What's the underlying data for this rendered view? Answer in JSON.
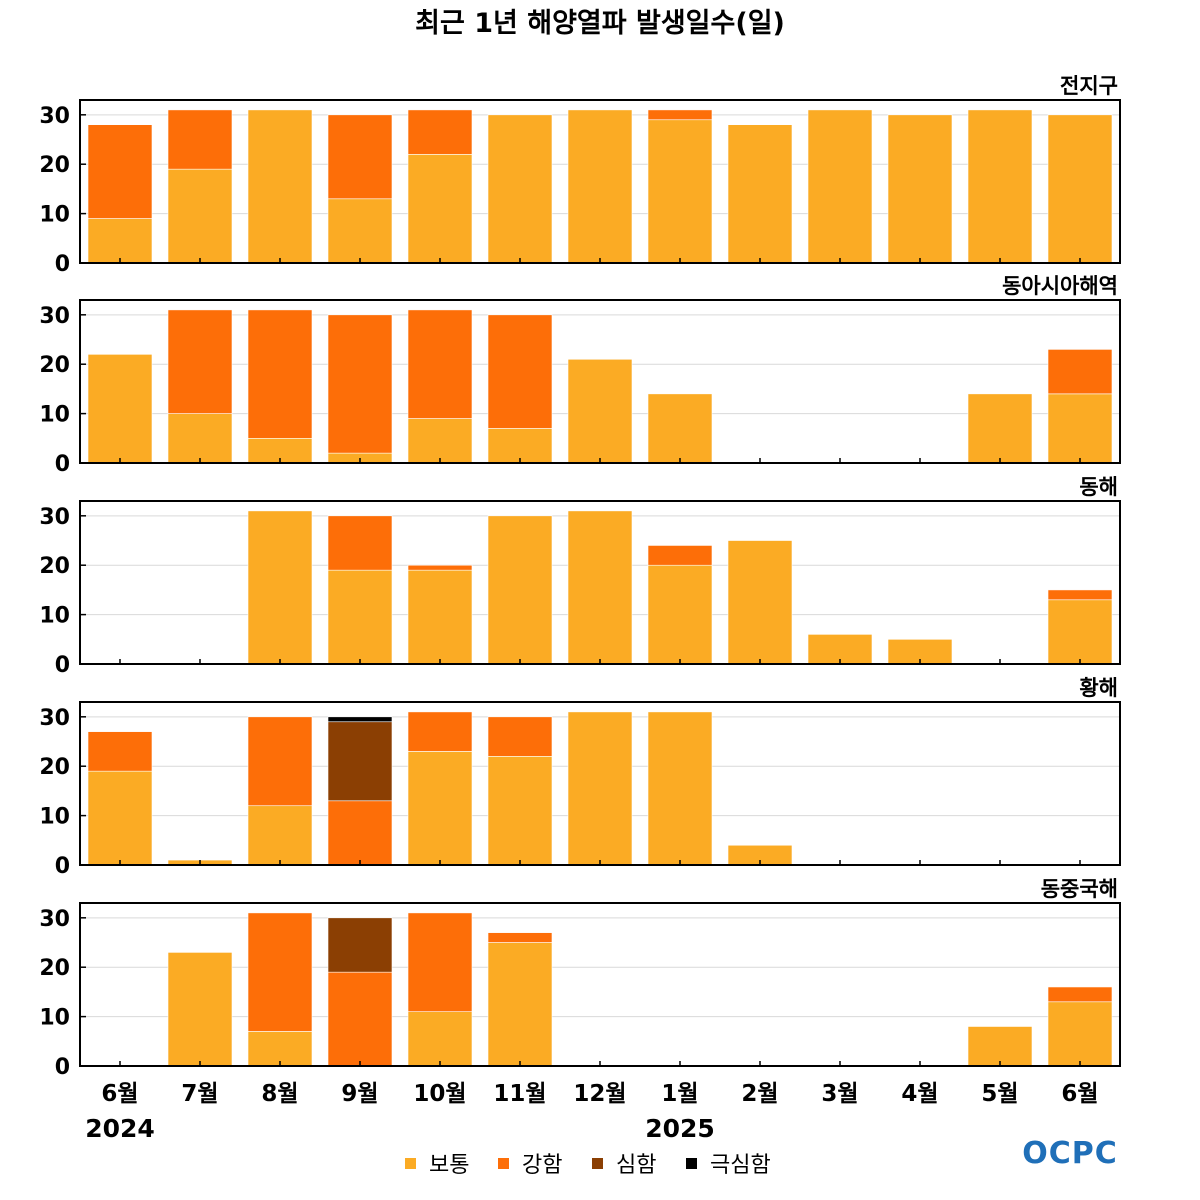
{
  "chart_data": {
    "type": "bar",
    "stacked": true,
    "title": "최근 1년 해양열파 발생일수(일)",
    "categories": [
      "6월",
      "7월",
      "8월",
      "9월",
      "10월",
      "11월",
      "12월",
      "1월",
      "2월",
      "3월",
      "4월",
      "5월",
      "6월"
    ],
    "year_labels": [
      {
        "index": 0,
        "text": "2024"
      },
      {
        "index": 7,
        "text": "2025"
      }
    ],
    "ylim": [
      0,
      33
    ],
    "yticks": [
      0,
      10,
      20,
      30
    ],
    "grid": true,
    "legend_position": "bottom-center",
    "series_legend": [
      {
        "name": "보통",
        "color": "#fbab24"
      },
      {
        "name": "강함",
        "color": "#fd6e08"
      },
      {
        "name": "심함",
        "color": "#8b3f03"
      },
      {
        "name": "극심함",
        "color": "#000000"
      }
    ],
    "panels": [
      {
        "region": "전지구",
        "series": [
          {
            "name": "보통",
            "values": [
              9,
              19,
              31,
              13,
              22,
              30,
              31,
              29,
              28,
              31,
              30,
              31,
              30
            ]
          },
          {
            "name": "강함",
            "values": [
              19,
              12,
              0,
              17,
              9,
              0,
              0,
              2,
              0,
              0,
              0,
              0,
              0
            ]
          },
          {
            "name": "심함",
            "values": [
              0,
              0,
              0,
              0,
              0,
              0,
              0,
              0,
              0,
              0,
              0,
              0,
              0
            ]
          },
          {
            "name": "극심함",
            "values": [
              0,
              0,
              0,
              0,
              0,
              0,
              0,
              0,
              0,
              0,
              0,
              0,
              0
            ]
          }
        ]
      },
      {
        "region": "동아시아해역",
        "series": [
          {
            "name": "보통",
            "values": [
              22,
              10,
              5,
              2,
              9,
              7,
              21,
              14,
              0,
              0,
              0,
              14,
              14
            ]
          },
          {
            "name": "강함",
            "values": [
              0,
              21,
              26,
              28,
              22,
              23,
              0,
              0,
              0,
              0,
              0,
              0,
              9
            ]
          },
          {
            "name": "심함",
            "values": [
              0,
              0,
              0,
              0,
              0,
              0,
              0,
              0,
              0,
              0,
              0,
              0,
              0
            ]
          },
          {
            "name": "극심함",
            "values": [
              0,
              0,
              0,
              0,
              0,
              0,
              0,
              0,
              0,
              0,
              0,
              0,
              0
            ]
          }
        ]
      },
      {
        "region": "동해",
        "series": [
          {
            "name": "보통",
            "values": [
              0,
              0,
              31,
              19,
              19,
              30,
              31,
              20,
              25,
              6,
              5,
              0,
              13
            ]
          },
          {
            "name": "강함",
            "values": [
              0,
              0,
              0,
              11,
              1,
              0,
              0,
              4,
              0,
              0,
              0,
              0,
              2
            ]
          },
          {
            "name": "심함",
            "values": [
              0,
              0,
              0,
              0,
              0,
              0,
              0,
              0,
              0,
              0,
              0,
              0,
              0
            ]
          },
          {
            "name": "극심함",
            "values": [
              0,
              0,
              0,
              0,
              0,
              0,
              0,
              0,
              0,
              0,
              0,
              0,
              0
            ]
          }
        ]
      },
      {
        "region": "황해",
        "series": [
          {
            "name": "보통",
            "values": [
              19,
              1,
              12,
              0,
              23,
              22,
              31,
              31,
              4,
              0,
              0,
              0,
              0
            ]
          },
          {
            "name": "강함",
            "values": [
              8,
              0,
              18,
              13,
              8,
              8,
              0,
              0,
              0,
              0,
              0,
              0,
              0
            ]
          },
          {
            "name": "심함",
            "values": [
              0,
              0,
              0,
              16,
              0,
              0,
              0,
              0,
              0,
              0,
              0,
              0,
              0
            ]
          },
          {
            "name": "극심함",
            "values": [
              0,
              0,
              0,
              1,
              0,
              0,
              0,
              0,
              0,
              0,
              0,
              0,
              0
            ]
          }
        ]
      },
      {
        "region": "동중국해",
        "series": [
          {
            "name": "보통",
            "values": [
              0,
              23,
              7,
              0,
              11,
              25,
              0,
              0,
              0,
              0,
              0,
              8,
              13
            ]
          },
          {
            "name": "강함",
            "values": [
              0,
              0,
              24,
              19,
              20,
              2,
              0,
              0,
              0,
              0,
              0,
              0,
              3
            ]
          },
          {
            "name": "심함",
            "values": [
              0,
              0,
              0,
              11,
              0,
              0,
              0,
              0,
              0,
              0,
              0,
              0,
              0
            ]
          },
          {
            "name": "극심함",
            "values": [
              0,
              0,
              0,
              0,
              0,
              0,
              0,
              0,
              0,
              0,
              0,
              0,
              0
            ]
          }
        ]
      }
    ]
  },
  "logo": {
    "text": "OCPC",
    "color": "#1f6fb8"
  }
}
